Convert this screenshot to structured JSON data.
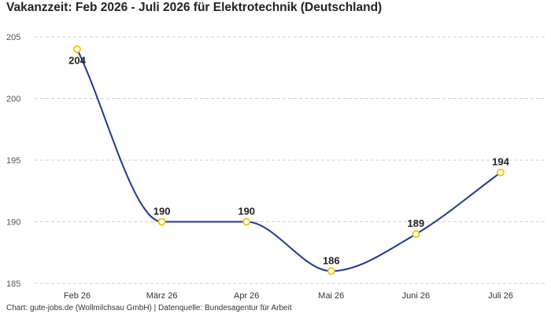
{
  "title": "Vakanzzeit: Feb 2026 - Juli 2026 für Elektrotechnik (Deutschland)",
  "footer": "Chart: gute-jobs.de (Wollmilchsau GmbH) | Datenquelle: Bundesagentur für Arbeit",
  "colors": {
    "line": "#1f3a93",
    "marker": "#f2c200",
    "grid": "#cfcfcf"
  },
  "chart_data": {
    "type": "line",
    "categories": [
      "Feb 26",
      "März 26",
      "Apr 26",
      "Mai 26",
      "Juni 26",
      "Juli 26"
    ],
    "series": [
      {
        "values": [
          204,
          190,
          190,
          186,
          189,
          194
        ]
      }
    ],
    "data_labels": [
      "204",
      "190",
      "190",
      "186",
      "189",
      "194"
    ],
    "yticks": [
      185,
      190,
      195,
      200,
      205
    ],
    "ylim": [
      185,
      205
    ],
    "grid": true,
    "smooth": true
  }
}
